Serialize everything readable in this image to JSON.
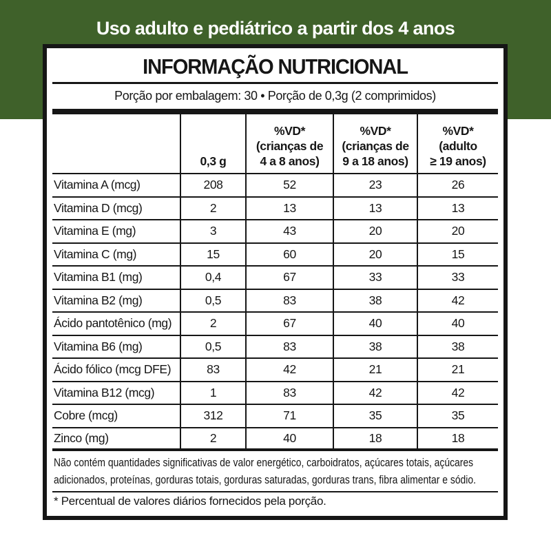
{
  "banner": {
    "text": "Uso adulto e pediátrico a partir dos 4 anos",
    "bg_color": "#3f612a",
    "text_color": "#ffffff"
  },
  "label": {
    "title": "INFORMAÇÃO NUTRICIONAL",
    "serving_info": "Porção por embalagem: 30  •  Porção de 0,3g (2 comprimidos)",
    "table": {
      "amount_header": "0,3 g",
      "vd_columns": [
        {
          "lines": [
            "%VD*",
            "(crianças de",
            "4 a 8 anos)"
          ]
        },
        {
          "lines": [
            "%VD*",
            "(crianças de",
            "9 a 18 anos)"
          ]
        },
        {
          "lines": [
            "%VD*",
            "(adulto",
            "≥ 19 anos)"
          ]
        }
      ],
      "rows": [
        {
          "name": "Vitamina A (mcg)",
          "values": [
            "208",
            "52",
            "23",
            "26"
          ]
        },
        {
          "name": "Vitamina D (mcg)",
          "values": [
            "2",
            "13",
            "13",
            "13"
          ]
        },
        {
          "name": "Vitamina E (mg)",
          "values": [
            "3",
            "43",
            "20",
            "20"
          ]
        },
        {
          "name": "Vitamina C (mg)",
          "values": [
            "15",
            "60",
            "20",
            "15"
          ]
        },
        {
          "name": "Vitamina B1 (mg)",
          "values": [
            "0,4",
            "67",
            "33",
            "33"
          ]
        },
        {
          "name": "Vitamina B2 (mg)",
          "values": [
            "0,5",
            "83",
            "38",
            "42"
          ]
        },
        {
          "name": "Ácido pantotênico (mg)",
          "values": [
            "2",
            "67",
            "40",
            "40"
          ]
        },
        {
          "name": "Vitamina B6 (mg)",
          "values": [
            "0,5",
            "83",
            "38",
            "38"
          ]
        },
        {
          "name": "Ácido fólico (mcg DFE)",
          "values": [
            "83",
            "42",
            "21",
            "21"
          ]
        },
        {
          "name": "Vitamina B12 (mcg)",
          "values": [
            "1",
            "83",
            "42",
            "42"
          ]
        },
        {
          "name": "Cobre (mcg)",
          "values": [
            "312",
            "71",
            "35",
            "35"
          ]
        },
        {
          "name": "Zinco (mg)",
          "values": [
            "2",
            "40",
            "18",
            "18"
          ]
        }
      ]
    },
    "footnotes": {
      "main": "Não contém quantidades significativas de valor energético, carboidratos, açúcares totais, açúcares adicionados, proteínas, gorduras totais, gorduras saturadas, gorduras trans, fibra alimentar e sódio.",
      "daily_values": "* Percentual de valores diários fornecidos pela porção."
    }
  }
}
